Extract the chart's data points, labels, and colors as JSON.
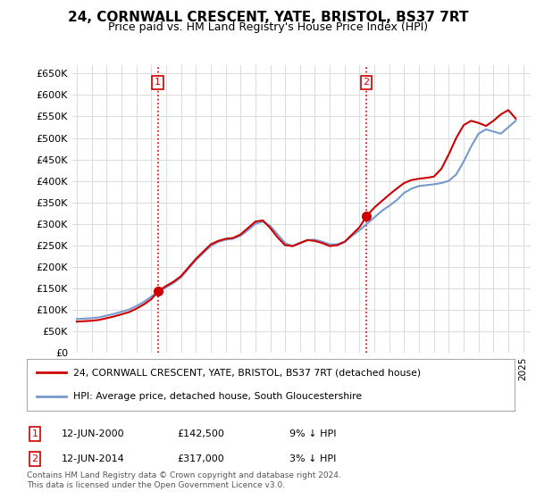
{
  "title": "24, CORNWALL CRESCENT, YATE, BRISTOL, BS37 7RT",
  "subtitle": "Price paid vs. HM Land Registry's House Price Index (HPI)",
  "ylim": [
    0,
    670000
  ],
  "yticks": [
    0,
    50000,
    100000,
    150000,
    200000,
    250000,
    300000,
    350000,
    400000,
    450000,
    500000,
    550000,
    600000,
    650000
  ],
  "xlim_start": 1994.7,
  "xlim_end": 2025.5,
  "background_color": "#ffffff",
  "grid_color": "#dddddd",
  "sale1_x": 2000.45,
  "sale1_y": 142500,
  "sale2_x": 2014.45,
  "sale2_y": 317000,
  "sale1_label": "1",
  "sale2_label": "2",
  "sale_marker_color": "#cc0000",
  "vline_color": "#cc0000",
  "hpi_line_color": "#7799cc",
  "price_line_color": "#cc0000",
  "legend1": "24, CORNWALL CRESCENT, YATE, BRISTOL, BS37 7RT (detached house)",
  "legend2": "HPI: Average price, detached house, South Gloucestershire",
  "table_entries": [
    {
      "num": "1",
      "date": "12-JUN-2000",
      "price": "£142,500",
      "hpi": "9% ↓ HPI"
    },
    {
      "num": "2",
      "date": "12-JUN-2014",
      "price": "£317,000",
      "hpi": "3% ↓ HPI"
    }
  ],
  "footer": "Contains HM Land Registry data © Crown copyright and database right 2024.\nThis data is licensed under the Open Government Licence v3.0.",
  "hpi_data_x": [
    1995,
    1995.5,
    1996,
    1996.5,
    1997,
    1997.5,
    1998,
    1998.5,
    1999,
    1999.5,
    2000,
    2000.5,
    2001,
    2001.5,
    2002,
    2002.5,
    2003,
    2003.5,
    2004,
    2004.5,
    2005,
    2005.5,
    2006,
    2006.5,
    2007,
    2007.5,
    2008,
    2008.5,
    2009,
    2009.5,
    2010,
    2010.5,
    2011,
    2011.5,
    2012,
    2012.5,
    2013,
    2013.5,
    2014,
    2014.5,
    2015,
    2015.5,
    2016,
    2016.5,
    2017,
    2017.5,
    2018,
    2018.5,
    2019,
    2019.5,
    2020,
    2020.5,
    2021,
    2021.5,
    2022,
    2022.5,
    2023,
    2023.5,
    2024,
    2024.5
  ],
  "hpi_data_y": [
    78000,
    79000,
    80000,
    82000,
    86000,
    90000,
    95000,
    100000,
    108000,
    118000,
    130000,
    142000,
    152000,
    162000,
    175000,
    195000,
    215000,
    232000,
    248000,
    258000,
    263000,
    265000,
    272000,
    285000,
    300000,
    305000,
    295000,
    275000,
    255000,
    248000,
    255000,
    262000,
    263000,
    258000,
    252000,
    252000,
    258000,
    272000,
    285000,
    300000,
    315000,
    330000,
    342000,
    355000,
    372000,
    382000,
    388000,
    390000,
    392000,
    395000,
    400000,
    415000,
    445000,
    480000,
    510000,
    520000,
    515000,
    510000,
    525000,
    540000
  ],
  "price_data_x": [
    1995,
    1995.5,
    1996,
    1996.5,
    1997,
    1997.5,
    1998,
    1998.5,
    1999,
    1999.5,
    2000,
    2000.45,
    2001,
    2001.5,
    2002,
    2002.5,
    2003,
    2003.5,
    2004,
    2004.5,
    2005,
    2005.5,
    2006,
    2006.5,
    2007,
    2007.5,
    2008,
    2008.5,
    2009,
    2009.5,
    2010,
    2010.5,
    2011,
    2011.5,
    2012,
    2012.5,
    2013,
    2013.5,
    2014,
    2014.45,
    2015,
    2015.5,
    2016,
    2016.5,
    2017,
    2017.5,
    2018,
    2018.5,
    2019,
    2019.5,
    2020,
    2020.5,
    2021,
    2021.5,
    2022,
    2022.5,
    2023,
    2023.5,
    2024,
    2024.5
  ],
  "price_data_y": [
    72000,
    73000,
    74000,
    76000,
    80000,
    84000,
    89000,
    94000,
    102000,
    112000,
    124000,
    142500,
    155000,
    165000,
    178000,
    198000,
    218000,
    235000,
    252000,
    260000,
    265000,
    267000,
    275000,
    290000,
    305000,
    308000,
    290000,
    268000,
    250000,
    248000,
    255000,
    262000,
    260000,
    255000,
    248000,
    250000,
    258000,
    275000,
    292000,
    317000,
    338000,
    353000,
    368000,
    382000,
    395000,
    402000,
    405000,
    407000,
    410000,
    428000,
    462000,
    500000,
    530000,
    540000,
    535000,
    528000,
    540000,
    555000,
    565000,
    545000
  ]
}
